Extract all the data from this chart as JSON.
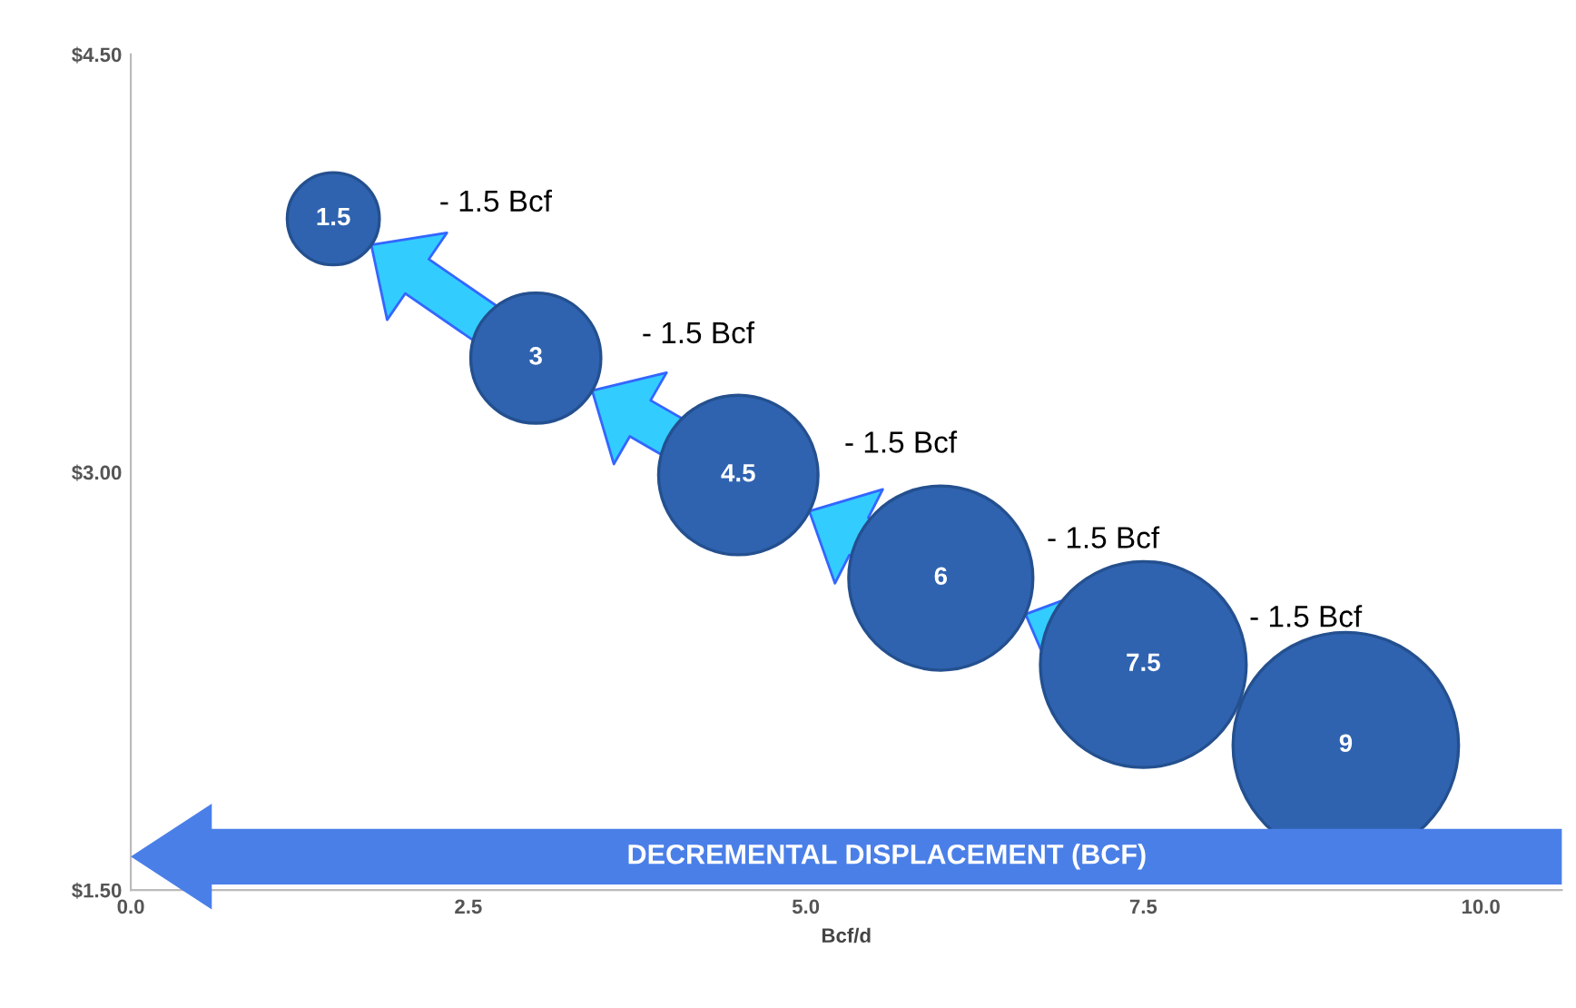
{
  "chart_data": {
    "type": "bubble",
    "x": [
      1.5,
      3.0,
      4.5,
      6.0,
      7.5,
      9.0
    ],
    "values": [
      3.91,
      3.41,
      2.99,
      2.62,
      2.31,
      2.02
    ],
    "sizes": [
      0.167,
      0.333,
      0.5,
      0.667,
      0.833,
      1
    ],
    "color": "#2f63b0",
    "xlabel": "Bcf/d",
    "xlim": [
      0,
      10.6
    ],
    "xticks": [
      {
        "value": 0,
        "label": "0.0"
      },
      2.5,
      {
        "value": 5,
        "label": "5.0"
      },
      7.5,
      {
        "value": 10,
        "label": "10.0"
      }
    ],
    "ylim": [
      1.5,
      4.5
    ],
    "yticks": [
      {
        "value": 1.5,
        "label": "$1.50"
      },
      {
        "value": 3,
        "label": "$3.00"
      },
      {
        "value": 4.5,
        "label": "$4.50"
      }
    ],
    "annotations": [
      {
        "text": "1.5",
        "x": 1.5,
        "y": 3.91
      },
      {
        "text": "3",
        "x": 3.0,
        "y": 3.41
      },
      {
        "text": "4.5",
        "x": 4.5,
        "y": 2.99
      },
      {
        "text": "6",
        "x": 6.0,
        "y": 2.62
      },
      {
        "text": "7.5",
        "x": 7.5,
        "y": 2.31
      },
      {
        "text": "9",
        "x": 9.0,
        "y": 2.02
      },
      "- 1.5 Bcf",
      "- 1.5 Bcf",
      "- 1.5 Bcf",
      "- 1.5 Bcf",
      "- 1.5 Bcf",
      "DECREMENTAL DISPLACEMENT (BCF)"
    ]
  }
}
